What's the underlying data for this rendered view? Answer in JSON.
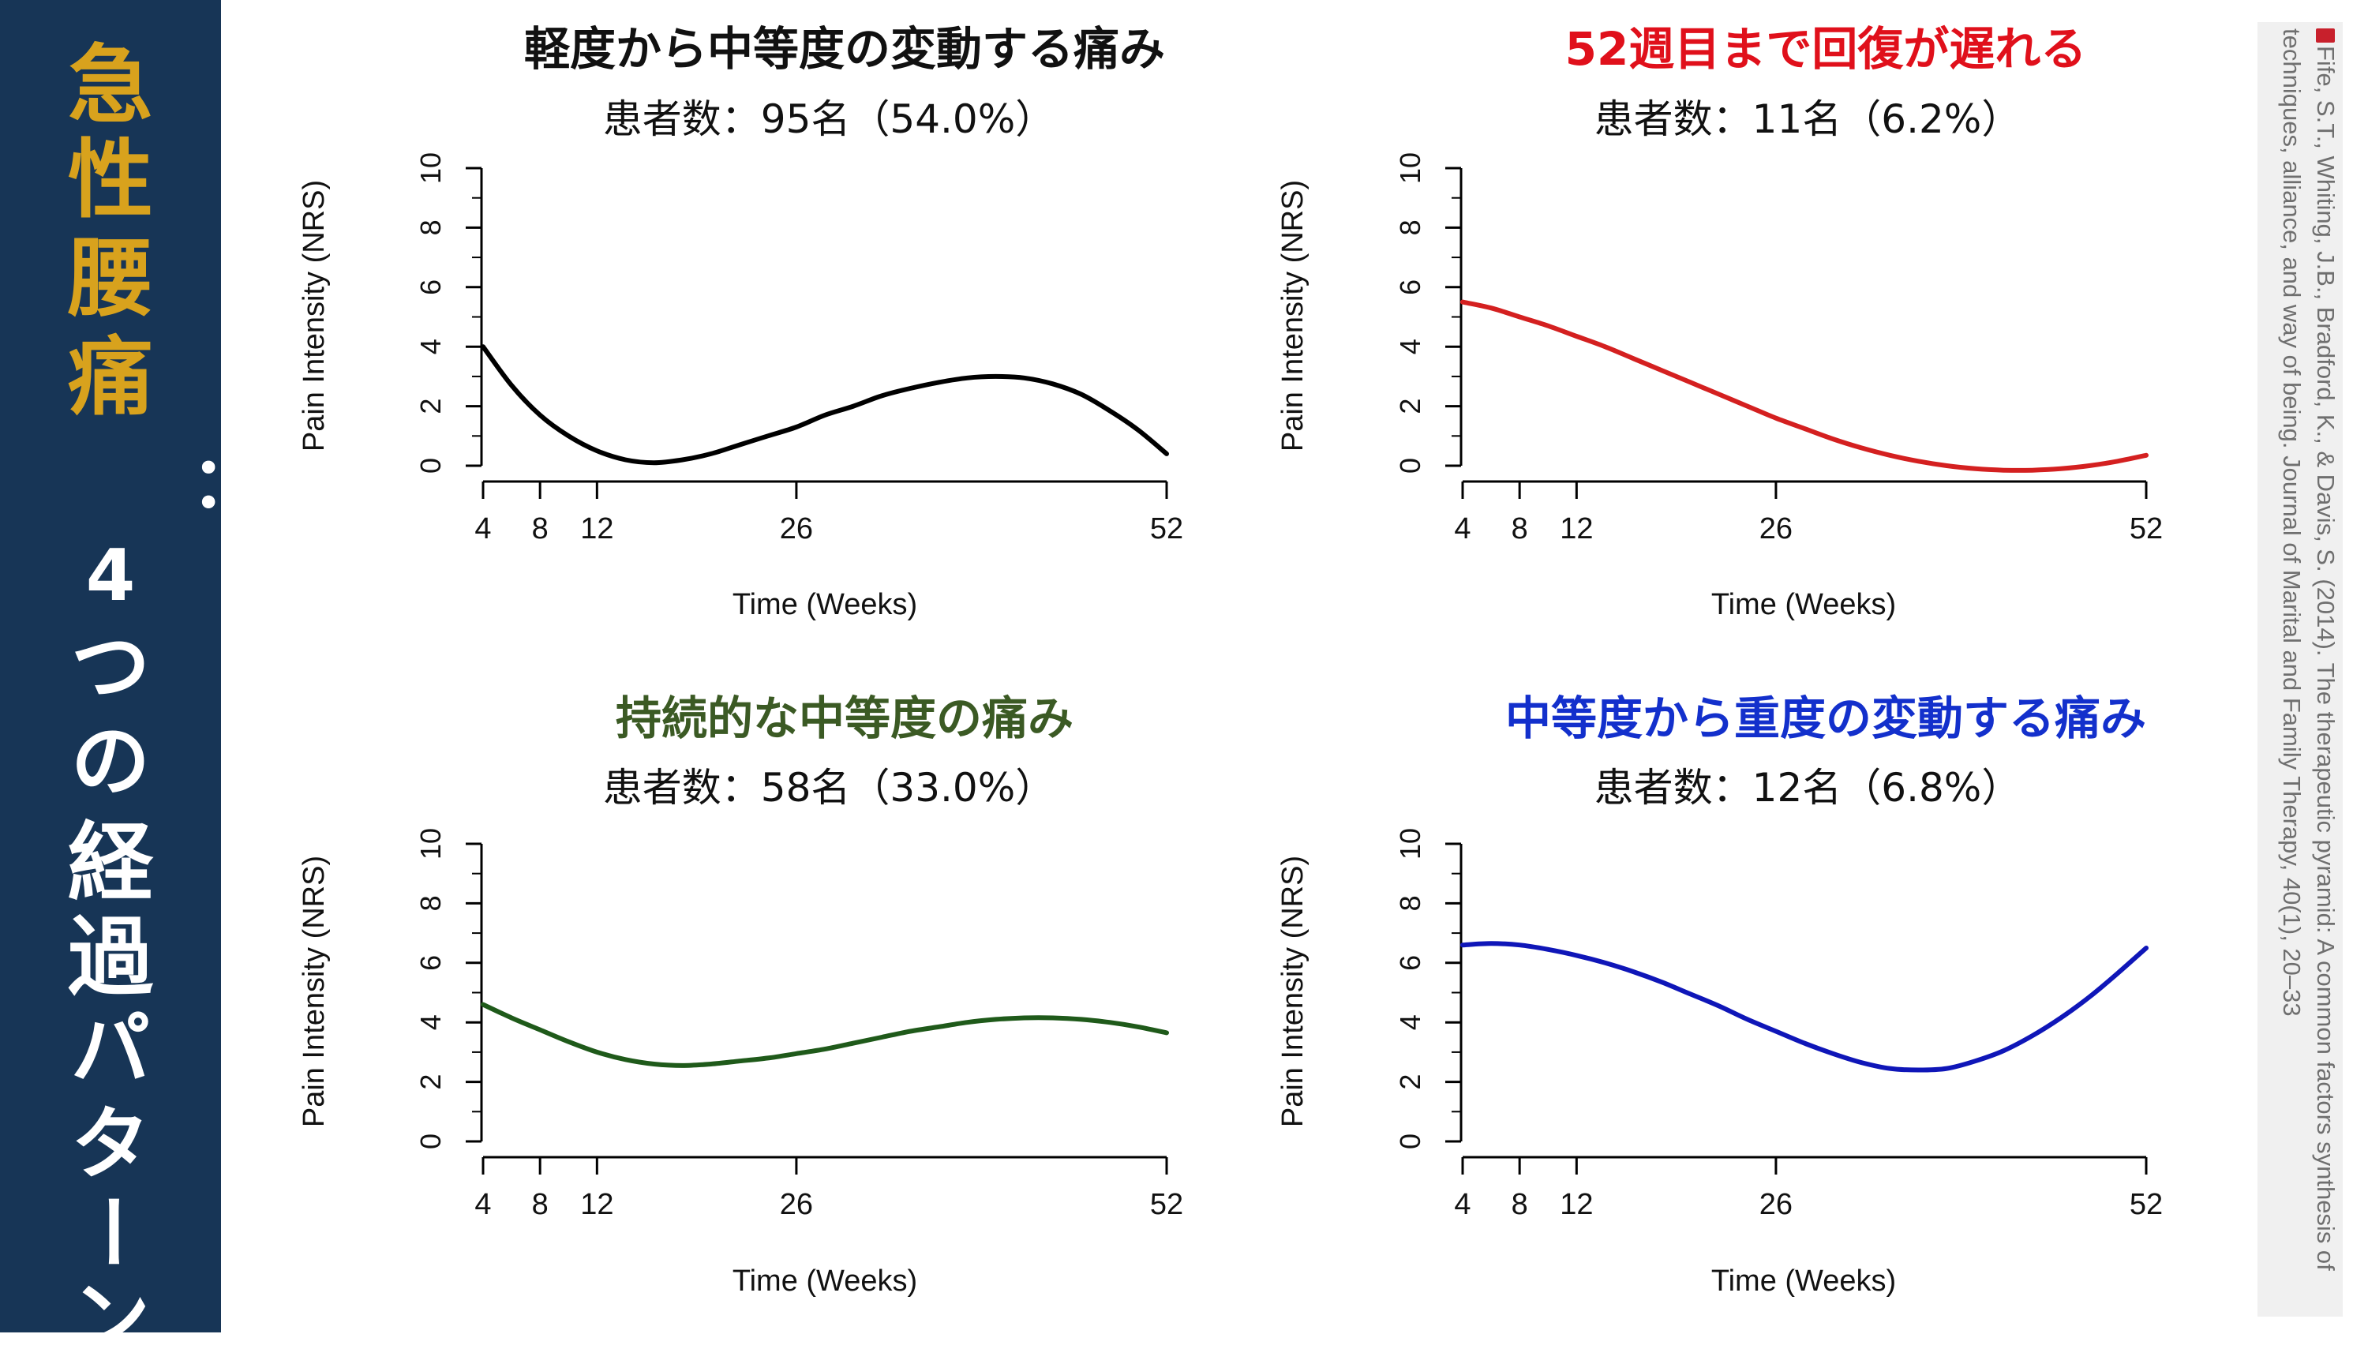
{
  "sidebar": {
    "title_chars": [
      "急",
      "性",
      "腰",
      "痛",
      "：",
      "4",
      "つ",
      "の",
      "経",
      "過",
      "パ",
      "タ",
      "ー",
      "ン"
    ],
    "gold_count": 4,
    "bg_color": "#173556",
    "gold_color": "#d8a21d",
    "white_color": "#ffffff"
  },
  "citation": {
    "icon": "book-icon",
    "text": "Fife, S.T., Whiting, J.B., Bradford, K., & Davis, S. (2014). The therapeutic pyramid: A common factors synthesis of techniques, alliance, and way of being. Journal of Marital and Family Therapy, 40(1), 20–33"
  },
  "chart_data": [
    {
      "type": "line",
      "title": "軽度から中等度の変動する痛み",
      "title_color": "#111111",
      "subtitle": "患者数：95名（54.0%）",
      "line_color": "#000000",
      "xlabel": "Time (Weeks)",
      "ylabel": "Pain Intensity (NRS)",
      "xticks": [
        "4",
        "8",
        "12",
        "26",
        "52"
      ],
      "xtick_values": [
        4,
        8,
        12,
        26,
        52
      ],
      "yticks": [
        "0",
        "2",
        "4",
        "6",
        "8",
        "10"
      ],
      "xlim": [
        4,
        52
      ],
      "ylim": [
        0,
        10
      ],
      "series": [
        {
          "name": "軽度から中等度の変動する痛み",
          "x": [
            4,
            6,
            8,
            10,
            12,
            14,
            16,
            18,
            20,
            22,
            24,
            26,
            28,
            30,
            32,
            34,
            36,
            38,
            40,
            42,
            44,
            46,
            48,
            50,
            52
          ],
          "y": [
            4.0,
            2.7,
            1.7,
            1.0,
            0.5,
            0.2,
            0.1,
            0.2,
            0.4,
            0.7,
            1.0,
            1.3,
            1.7,
            2.0,
            2.35,
            2.6,
            2.8,
            2.95,
            3.0,
            2.95,
            2.75,
            2.4,
            1.85,
            1.2,
            0.4
          ]
        }
      ]
    },
    {
      "type": "line",
      "title": "52週目まで回復が遅れる",
      "title_color": "#e0101b",
      "subtitle": "患者数：11名（6.2%）",
      "line_color": "#d42020",
      "xlabel": "Time (Weeks)",
      "ylabel": "Pain Intensity (NRS)",
      "xticks": [
        "4",
        "8",
        "12",
        "26",
        "52"
      ],
      "xtick_values": [
        4,
        8,
        12,
        26,
        52
      ],
      "yticks": [
        "0",
        "2",
        "4",
        "6",
        "8",
        "10"
      ],
      "xlim": [
        4,
        52
      ],
      "ylim": [
        0,
        10
      ],
      "series": [
        {
          "name": "52週目まで回復が遅れる",
          "x": [
            4,
            6,
            8,
            10,
            12,
            14,
            16,
            18,
            20,
            22,
            24,
            26,
            28,
            30,
            32,
            34,
            36,
            38,
            40,
            42,
            44,
            46,
            48,
            50,
            52
          ],
          "y": [
            5.5,
            5.3,
            5.0,
            4.7,
            4.35,
            4.0,
            3.6,
            3.2,
            2.8,
            2.4,
            2.0,
            1.6,
            1.25,
            0.9,
            0.6,
            0.35,
            0.15,
            0.0,
            -0.1,
            -0.15,
            -0.15,
            -0.1,
            0.0,
            0.15,
            0.35
          ]
        }
      ]
    },
    {
      "type": "line",
      "title": "持続的な中等度の痛み",
      "title_color": "#3b5a24",
      "subtitle": "患者数：58名（33.0%）",
      "line_color": "#1f5a1a",
      "xlabel": "Time (Weeks)",
      "ylabel": "Pain Intensity (NRS)",
      "xticks": [
        "4",
        "8",
        "12",
        "26",
        "52"
      ],
      "xtick_values": [
        4,
        8,
        12,
        26,
        52
      ],
      "yticks": [
        "0",
        "2",
        "4",
        "6",
        "8",
        "10"
      ],
      "xlim": [
        4,
        52
      ],
      "ylim": [
        0,
        10
      ],
      "series": [
        {
          "name": "持続的な中等度の痛み",
          "x": [
            4,
            6,
            8,
            10,
            12,
            14,
            16,
            18,
            20,
            22,
            24,
            26,
            28,
            30,
            32,
            34,
            36,
            38,
            40,
            42,
            44,
            46,
            48,
            50,
            52
          ],
          "y": [
            4.6,
            4.15,
            3.75,
            3.35,
            3.0,
            2.75,
            2.6,
            2.55,
            2.6,
            2.7,
            2.8,
            2.95,
            3.1,
            3.3,
            3.5,
            3.7,
            3.85,
            4.0,
            4.1,
            4.15,
            4.15,
            4.1,
            4.0,
            3.85,
            3.65
          ]
        }
      ]
    },
    {
      "type": "line",
      "title": "中等度から重度の変動する痛み",
      "title_color": "#1330cc",
      "subtitle": "患者数：12名（6.8%）",
      "line_color": "#0f16b8",
      "xlabel": "Time (Weeks)",
      "ylabel": "Pain Intensity (NRS)",
      "xticks": [
        "4",
        "8",
        "12",
        "26",
        "52"
      ],
      "xtick_values": [
        4,
        8,
        12,
        26,
        52
      ],
      "yticks": [
        "0",
        "2",
        "4",
        "6",
        "8",
        "10"
      ],
      "xlim": [
        4,
        52
      ],
      "ylim": [
        0,
        10
      ],
      "series": [
        {
          "name": "中等度から重度の変動する痛み",
          "x": [
            4,
            6,
            8,
            10,
            12,
            14,
            16,
            18,
            20,
            22,
            24,
            26,
            28,
            30,
            32,
            34,
            36,
            38,
            40,
            42,
            44,
            46,
            48,
            50,
            52
          ],
          "y": [
            6.6,
            6.65,
            6.6,
            6.45,
            6.25,
            6.0,
            5.7,
            5.35,
            4.95,
            4.55,
            4.1,
            3.7,
            3.3,
            2.95,
            2.65,
            2.45,
            2.4,
            2.45,
            2.7,
            3.05,
            3.55,
            4.15,
            4.85,
            5.65,
            6.5
          ]
        }
      ]
    }
  ]
}
